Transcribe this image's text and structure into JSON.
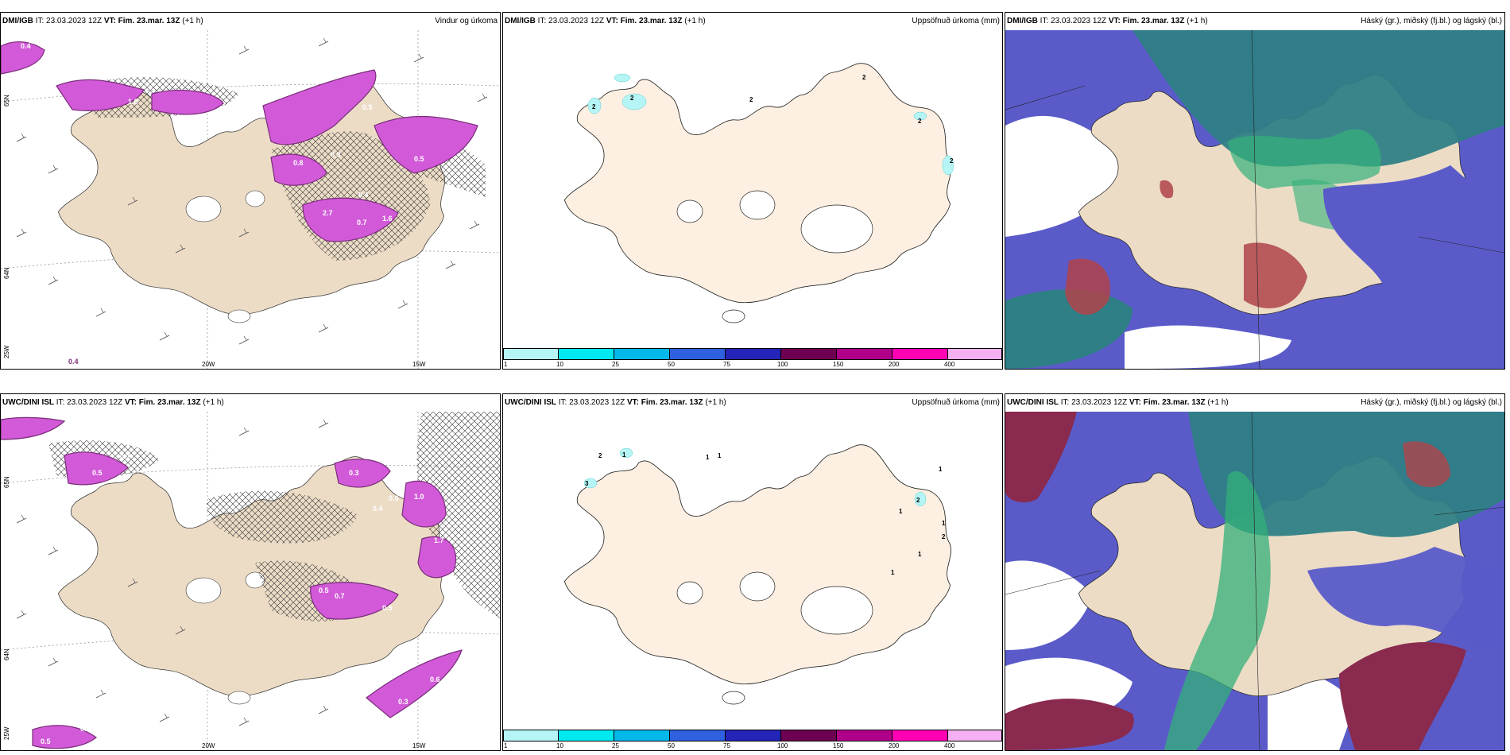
{
  "colors": {
    "land_tan": "#ecdcc6",
    "land_cream": "#fdf0e2",
    "precip_magenta": "#d25ad8",
    "precip_dark": "#7a2d7a",
    "cloud_high_teal": "#2f7f86",
    "cloud_mid_green": "#34b07a",
    "cloud_low_blue": "#5a5bc9",
    "cloud_red": "#b0434a",
    "cloud_maroon": "#8a2a4e"
  },
  "panels": {
    "dmi_wind": {
      "model": "DMI/IGB",
      "it_label": "IT: 23.03.2023 12Z",
      "vt_label": "VT: Fim. 23.mar. 13Z",
      "offset": "(+1 h)",
      "title_right": "Vindur og úrkoma",
      "lon_labels": [
        "20W",
        "15W"
      ],
      "lat_labels": [
        "65N",
        "64N",
        "25W"
      ],
      "values": [
        "0.4",
        "1.8",
        "1.5",
        "0.5",
        "0.8",
        "0.3",
        "2.7",
        "0.4",
        "0.7",
        "1.6",
        "0.5",
        "0.4"
      ]
    },
    "dmi_accum": {
      "model": "DMI/IGB",
      "it_label": "IT: 23.03.2023 12Z",
      "vt_label": "VT: Fim. 23.mar. 13Z",
      "offset": "(+1 h)",
      "title_right": "Uppsöfnuð úrkoma (mm)",
      "values": [
        "2",
        "2",
        "2",
        "2",
        "2",
        "2"
      ]
    },
    "dmi_cloud": {
      "model": "DMI/IGB",
      "it_label": "IT: 23.03.2023 12Z",
      "vt_label": "VT: Fim. 23.mar. 13Z",
      "offset": "(+1 h)",
      "title_right": "Háský (gr.), miðský (fj.bl.) og lágský (bl.)"
    },
    "uwc_wind": {
      "model": "UWC/DINI ISL",
      "it_label": "IT: 23.03.2023 12Z",
      "vt_label": "VT: Fim. 23.mar. 13Z",
      "offset": "(+1 h)",
      "title_right": "",
      "lon_labels": [
        "20W",
        "15W"
      ],
      "lat_labels": [
        "65N",
        "64N",
        "25W"
      ],
      "values": [
        "0.7",
        "0.5",
        "1.0",
        "0.6",
        "0.4",
        "0.3",
        "0.5",
        "0.7",
        "1.7",
        "0.5",
        "0.3",
        "0.6",
        "0.3",
        "0.5"
      ]
    },
    "uwc_accum": {
      "model": "UWC/DINI ISL",
      "it_label": "IT: 23.03.2023 12Z",
      "vt_label": "VT: Fim. 23.mar. 13Z",
      "offset": "(+1 h)",
      "title_right": "Uppsöfnuð úrkoma (mm)",
      "values": [
        "3",
        "2",
        "1",
        "1",
        "1",
        "2",
        "1",
        "1",
        "2",
        "1",
        "1",
        "1"
      ]
    },
    "uwc_cloud": {
      "model": "UWC/DINI ISL",
      "it_label": "IT: 23.03.2023 12Z",
      "vt_label": "VT: Fim. 23.mar. 13Z",
      "offset": "(+1 h)",
      "title_right": "Háský (gr.), miðský (fj.bl.) og lágský (bl.)"
    }
  },
  "colorbar": {
    "ticks": [
      "1",
      "10",
      "25",
      "50",
      "75",
      "100",
      "150",
      "200",
      "400"
    ],
    "colors": [
      "#b5f5f5",
      "#00e8f0",
      "#05b8ea",
      "#2e60e0",
      "#2424b8",
      "#6e0052",
      "#b0008a",
      "#ff00b4",
      "#f4b0f0"
    ]
  }
}
